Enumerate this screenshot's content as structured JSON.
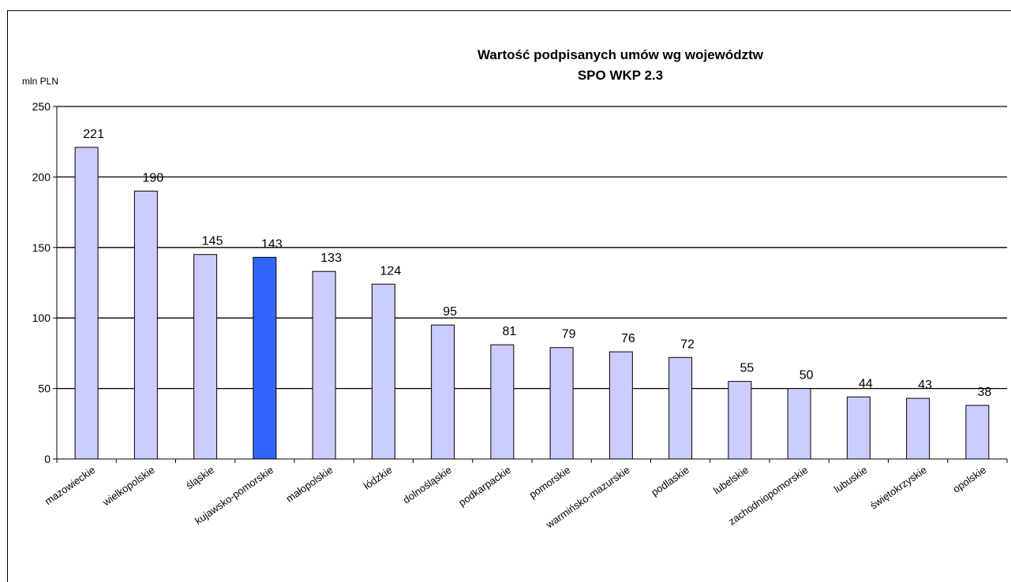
{
  "chart_data": {
    "type": "bar",
    "title": "Wartość podpisanych umów wg województw",
    "subtitle": "SPO WKP 2.3",
    "ylabel": "mln PLN",
    "xlabel": "",
    "ylim": [
      0,
      250
    ],
    "yticks": [
      0,
      50,
      100,
      150,
      200,
      250
    ],
    "grid": true,
    "categories": [
      "mazowieckie",
      "wielkopolskie",
      "śląskie",
      "kujawsko-pomorskie",
      "małopolskie",
      "łódzkie",
      "dolnośląskie",
      "podkarpackie",
      "pomorskie",
      "warmińsko-mazurskie",
      "podlaskie",
      "lubelskie",
      "zachodniopomorskie",
      "lubuskie",
      "świętokrzyskie",
      "opolskie"
    ],
    "values": [
      221,
      190,
      145,
      143,
      133,
      124,
      95,
      81,
      79,
      76,
      72,
      55,
      50,
      44,
      43,
      38
    ],
    "highlight_index": 3,
    "colors": {
      "bar": "#ccccff",
      "highlight": "#3366ff",
      "grid": "#000000"
    }
  }
}
